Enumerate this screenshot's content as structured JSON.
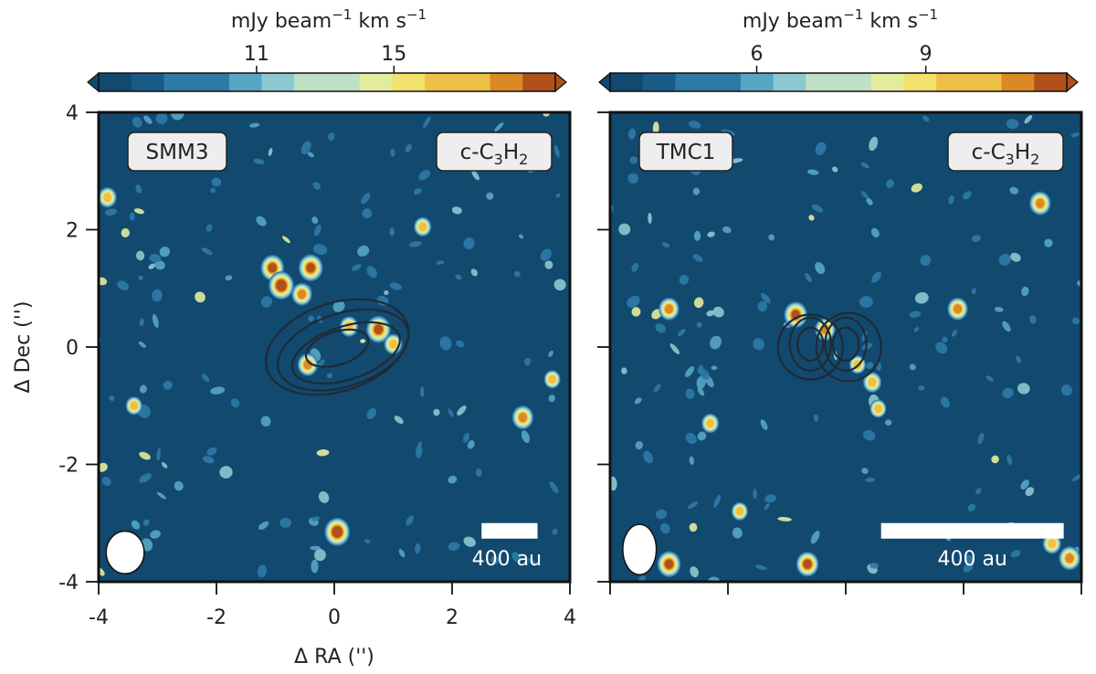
{
  "chart_data": [
    {
      "type": "heatmap",
      "name": "left-panel",
      "source": "SMM3",
      "molecule": "c-C3H2",
      "molecule_parts": {
        "pre": "c-C",
        "sub1": "3",
        "mid": "H",
        "sub2": "2"
      },
      "colorbar": {
        "label_pre": "mJy beam",
        "label_exp": "−1",
        "label_mid": " km s",
        "label_exp2": "−1",
        "ticks": [
          11,
          15
        ],
        "tick_labels": [
          "11",
          "15"
        ],
        "range": [
          6.4,
          19.7
        ]
      },
      "xlabel": "Δ RA ('')",
      "ylabel": "Δ Dec ('')",
      "xlim": [
        -4,
        4
      ],
      "ylim": [
        -4,
        4
      ],
      "xticks": [
        -4,
        -2,
        0,
        2,
        4
      ],
      "xtick_labels": [
        "-4",
        "-2",
        "0",
        "2",
        "4"
      ],
      "yticks": [
        4,
        2,
        0,
        -2,
        -4
      ],
      "ytick_labels": [
        "4",
        "2",
        "0",
        "-2",
        "-4"
      ],
      "scale_bar": {
        "label": "400 au",
        "length_arcsec": 0.95,
        "x_start": 2.5,
        "y": -3.0
      },
      "beam": {
        "x": -3.55,
        "y": -3.5,
        "major": 0.38,
        "minor": 0.34,
        "pa": 0
      },
      "contour_center": [
        0.0,
        0.0
      ],
      "contours": [
        {
          "rx": 0.55,
          "ry": 0.28,
          "angle": -18,
          "cx": 0.05,
          "cy": -0.02
        },
        {
          "rx": 0.95,
          "ry": 0.45,
          "angle": -18,
          "cx": 0.2,
          "cy": -0.1
        },
        {
          "rx": 1.15,
          "ry": 0.62,
          "angle": -18,
          "cx": 0.15,
          "cy": -0.05
        },
        {
          "rx": 1.25,
          "ry": 0.75,
          "angle": -18,
          "cx": 0.05,
          "cy": 0.0
        }
      ],
      "emission_peaks": [
        {
          "x": -1.05,
          "y": 1.35,
          "level": 0.85
        },
        {
          "x": -0.4,
          "y": 1.35,
          "level": 0.9
        },
        {
          "x": -0.9,
          "y": 1.05,
          "level": 0.95
        },
        {
          "x": -0.55,
          "y": 0.9,
          "level": 0.7
        },
        {
          "x": 0.75,
          "y": 0.3,
          "level": 0.9
        },
        {
          "x": 0.25,
          "y": 0.35,
          "level": 0.6
        },
        {
          "x": -0.45,
          "y": -0.3,
          "level": 0.7
        },
        {
          "x": 1.0,
          "y": 0.05,
          "level": 0.6
        },
        {
          "x": 0.05,
          "y": -3.15,
          "level": 0.95
        },
        {
          "x": 3.2,
          "y": -1.2,
          "level": 0.75
        },
        {
          "x": -3.85,
          "y": 2.55,
          "level": 0.6
        },
        {
          "x": 1.5,
          "y": 2.05,
          "level": 0.55
        },
        {
          "x": -3.4,
          "y": -1.0,
          "level": 0.5
        },
        {
          "x": 3.7,
          "y": -0.55,
          "level": 0.5
        }
      ]
    },
    {
      "type": "heatmap",
      "name": "right-panel",
      "source": "TMC1",
      "molecule": "c-C3H2",
      "molecule_parts": {
        "pre": "c-C",
        "sub1": "3",
        "mid": "H",
        "sub2": "2"
      },
      "colorbar": {
        "label_pre": "mJy beam",
        "label_exp": "−1",
        "label_mid": " km s",
        "label_exp2": "−1",
        "ticks": [
          6,
          9
        ],
        "tick_labels": [
          "6",
          "9"
        ],
        "range": [
          3.4,
          11.5
        ]
      },
      "xlim": [
        -4,
        4
      ],
      "ylim": [
        -4,
        4
      ],
      "scale_bar": {
        "label": "400 au",
        "length_arcsec": 3.1,
        "x_start": 0.6,
        "y": -3.0
      },
      "beam": {
        "x": -3.5,
        "y": -3.45,
        "major": 0.45,
        "minor": 0.3,
        "pa": 0
      },
      "contours": [
        {
          "rx": 0.22,
          "ry": 0.28,
          "angle": 0,
          "cx": -0.6,
          "cy": 0.05
        },
        {
          "rx": 0.22,
          "ry": 0.28,
          "angle": 0,
          "cx": 0.0,
          "cy": 0.05
        },
        {
          "rx": 0.35,
          "ry": 0.45,
          "angle": 0,
          "cx": -0.6,
          "cy": 0.05
        },
        {
          "rx": 0.35,
          "ry": 0.45,
          "angle": 0,
          "cx": 0.0,
          "cy": 0.05
        },
        {
          "rx": 0.55,
          "ry": 0.55,
          "angle": 0,
          "cx": -0.6,
          "cy": 0.0
        },
        {
          "rx": 0.55,
          "ry": 0.58,
          "angle": 0,
          "cx": 0.05,
          "cy": 0.0
        }
      ],
      "emission_peaks": [
        {
          "x": -0.85,
          "y": 0.55,
          "level": 0.85
        },
        {
          "x": -0.35,
          "y": 0.3,
          "level": 0.7
        },
        {
          "x": 0.2,
          "y": -0.3,
          "level": 0.5
        },
        {
          "x": 0.45,
          "y": -0.6,
          "level": 0.6
        },
        {
          "x": 0.55,
          "y": -1.05,
          "level": 0.5
        },
        {
          "x": -3.0,
          "y": 0.65,
          "level": 0.7
        },
        {
          "x": 1.9,
          "y": 0.65,
          "level": 0.7
        },
        {
          "x": 3.3,
          "y": 2.45,
          "level": 0.75
        },
        {
          "x": -0.65,
          "y": -3.7,
          "level": 0.8
        },
        {
          "x": -3.0,
          "y": -3.7,
          "level": 0.85
        },
        {
          "x": 3.8,
          "y": -3.6,
          "level": 0.75
        },
        {
          "x": 3.5,
          "y": -3.35,
          "level": 0.6
        },
        {
          "x": -2.3,
          "y": -1.3,
          "level": 0.55
        },
        {
          "x": -1.8,
          "y": -2.8,
          "level": 0.5
        }
      ]
    }
  ]
}
